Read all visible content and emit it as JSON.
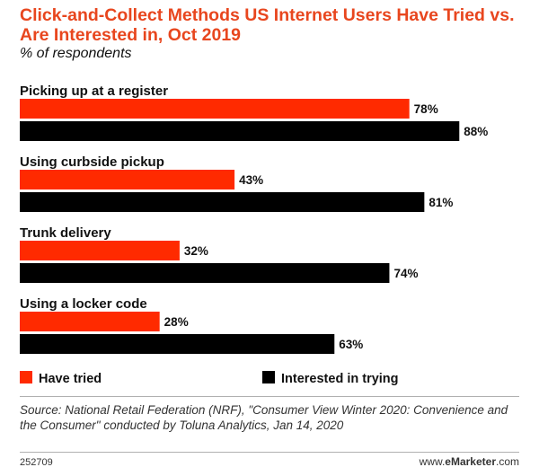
{
  "chart_data": {
    "type": "bar",
    "orientation": "horizontal",
    "title": "Click-and-Collect Methods US Internet Users Have Tried vs. Are Interested in, Oct 2019",
    "subtitle": "% of respondents",
    "categories": [
      "Picking up at a register",
      "Using curbside pickup",
      "Trunk delivery",
      "Using a locker code"
    ],
    "series": [
      {
        "name": "Have tried",
        "color": "#ff2a00",
        "values": [
          78,
          43,
          32,
          28
        ]
      },
      {
        "name": "Interested in trying",
        "color": "#000000",
        "values": [
          88,
          81,
          74,
          63
        ]
      }
    ],
    "value_suffix": "%",
    "xlim": [
      0,
      100
    ],
    "legend_position": "bottom",
    "grid": false
  },
  "footer": {
    "source": "Source: National Retail Federation (NRF), \"Consumer View Winter 2020: Convenience and the Consumer\" conducted by Toluna Analytics, Jan 14, 2020",
    "chart_id": "252709",
    "brand_prefix": "www.",
    "brand_name": "eMarketer",
    "brand_suffix": ".com"
  }
}
